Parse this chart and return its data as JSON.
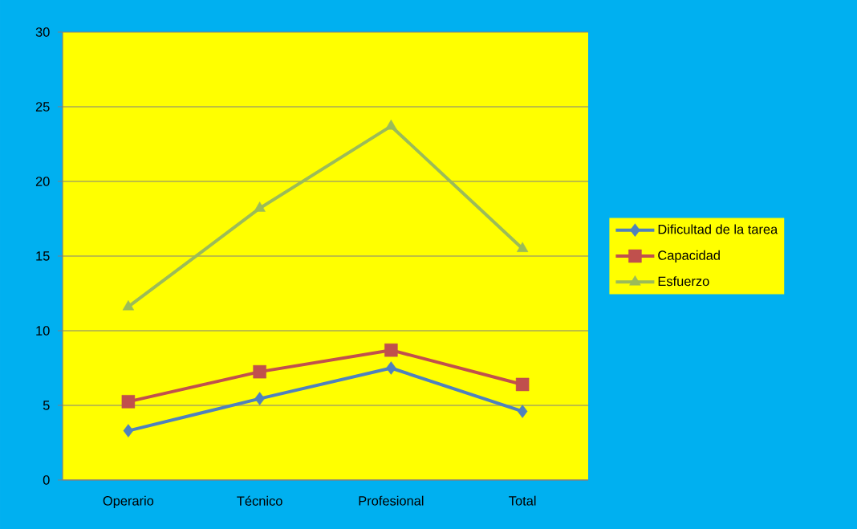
{
  "chart_data": {
    "type": "line",
    "categories": [
      "Operario",
      "Técnico",
      "Profesional",
      "Total"
    ],
    "series": [
      {
        "name": "Dificultad de la tarea",
        "color": "#4f81bd",
        "marker": "diamond",
        "values": [
          3.3,
          5.45,
          7.5,
          4.6
        ]
      },
      {
        "name": "Capacidad",
        "color": "#c0504d",
        "marker": "square",
        "values": [
          5.25,
          7.25,
          8.7,
          6.4
        ]
      },
      {
        "name": "Esfuerzo",
        "color": "#9bbb59",
        "marker": "triangle",
        "values": [
          11.6,
          18.2,
          23.7,
          15.5
        ]
      }
    ],
    "ylim": [
      0,
      30
    ],
    "yticks": [
      0,
      5,
      10,
      15,
      20,
      25,
      30
    ],
    "grid": "y",
    "legend": "right",
    "line_style": "solid"
  }
}
